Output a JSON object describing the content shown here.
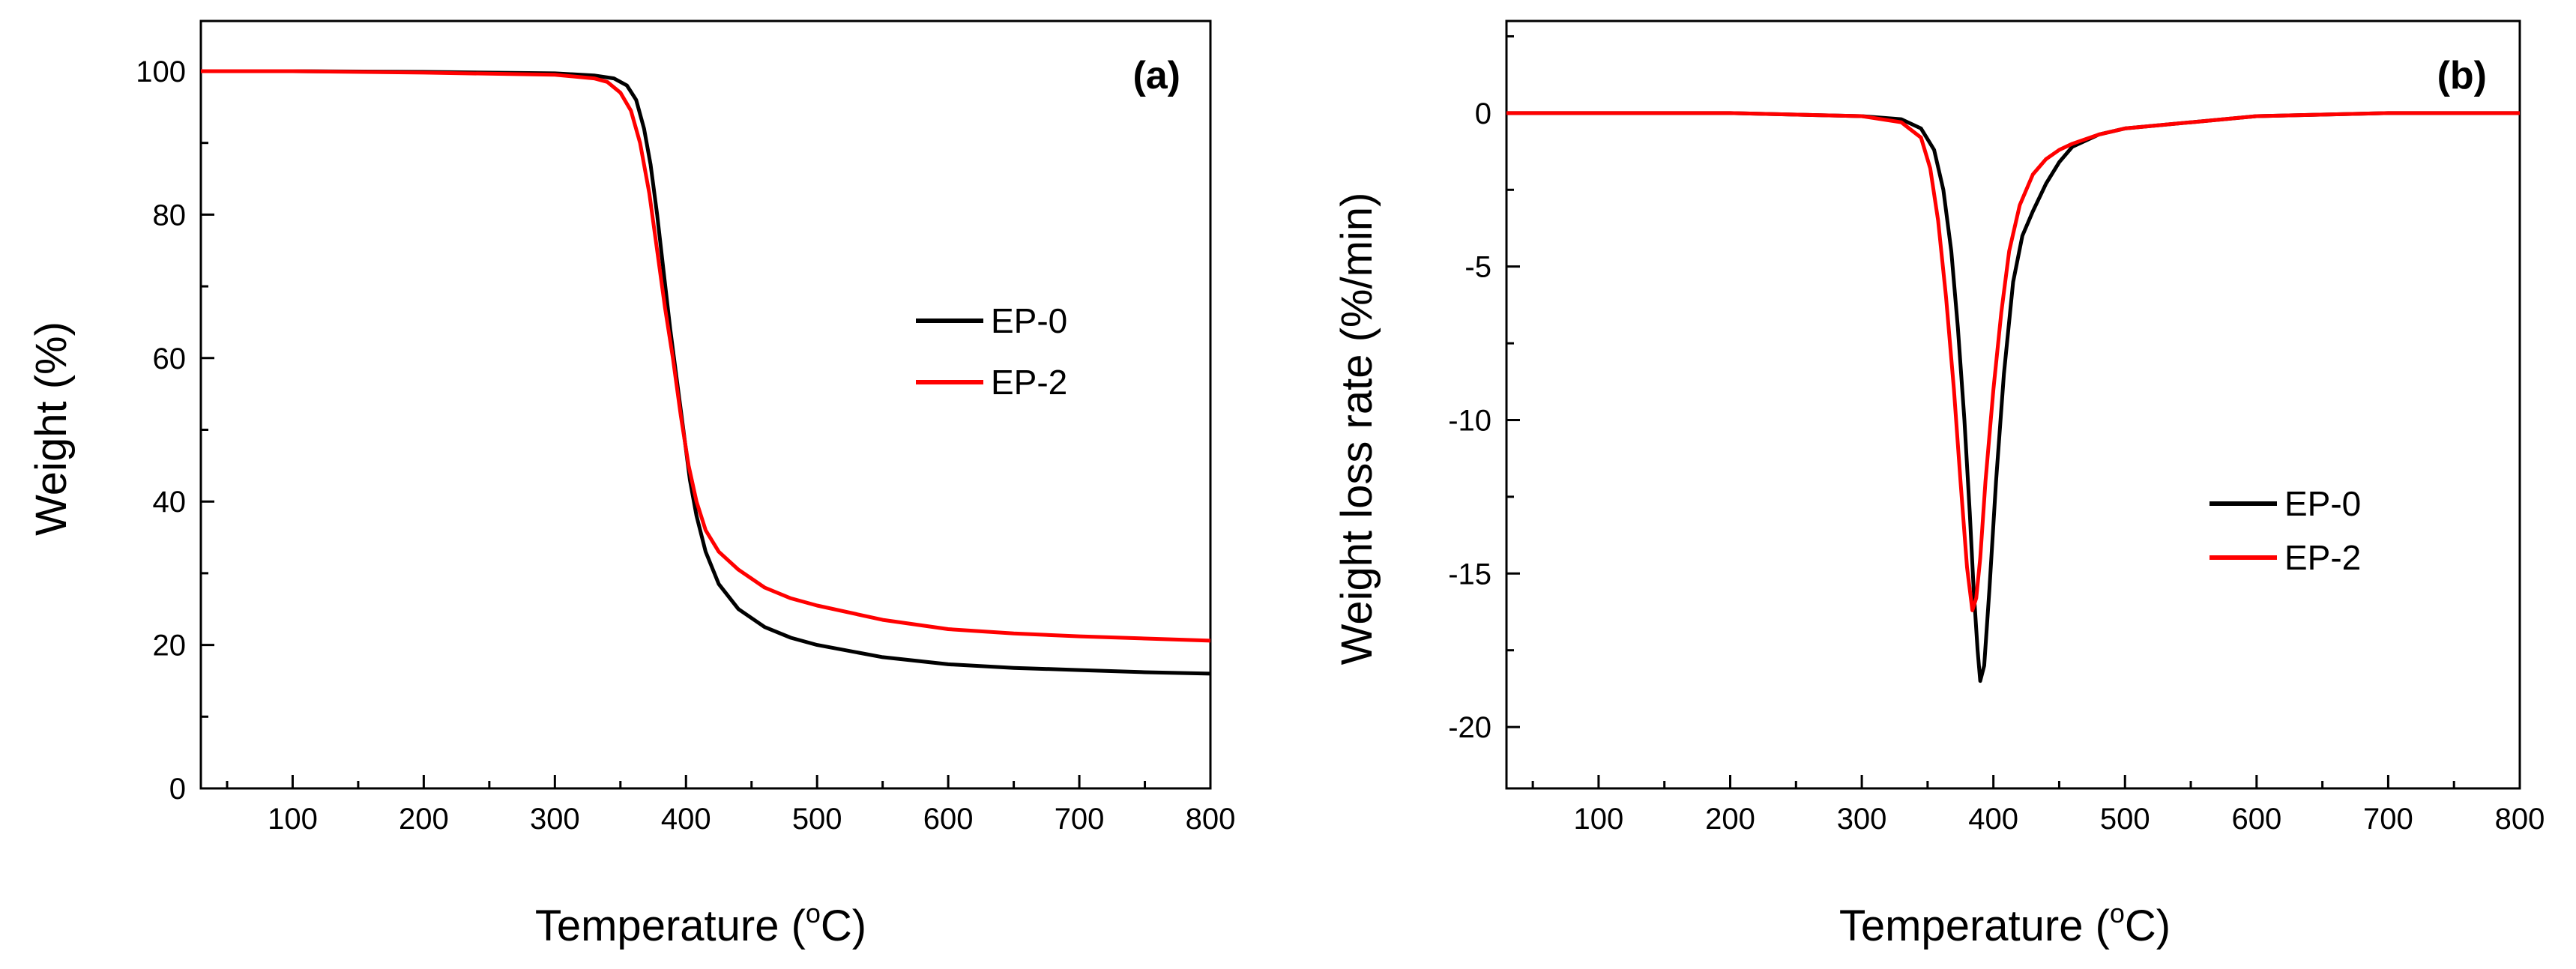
{
  "chart_data": [
    {
      "type": "line",
      "panel_label": "(a)",
      "xlabel": "Temperature (",
      "xlabel_sup": "o",
      "xlabel_unit": "C)",
      "ylabel": "Weight (%)",
      "xlim": [
        30,
        800
      ],
      "ylim": [
        0,
        107
      ],
      "x_ticks": [
        100,
        200,
        300,
        400,
        500,
        600,
        700,
        800
      ],
      "x_tick_labels": [
        "100",
        "200",
        "300",
        "400",
        "500",
        "600",
        "700",
        "800"
      ],
      "y_ticks": [
        0,
        20,
        40,
        60,
        80,
        100
      ],
      "y_tick_labels": [
        "0",
        "20",
        "40",
        "60",
        "80",
        "100"
      ],
      "legend_position": "middle-right",
      "series": [
        {
          "name": "EP-0",
          "color": "#000000",
          "x": [
            30,
            100,
            200,
            300,
            330,
            345,
            355,
            362,
            368,
            373,
            378,
            383,
            388,
            393,
            398,
            403,
            408,
            415,
            425,
            440,
            460,
            480,
            500,
            550,
            600,
            650,
            700,
            750,
            800
          ],
          "y": [
            100,
            100,
            99.9,
            99.7,
            99.4,
            99,
            98,
            96,
            92,
            87,
            80,
            72,
            64,
            57,
            50,
            43,
            38,
            33,
            28.5,
            25,
            22.5,
            21,
            20,
            18.3,
            17.3,
            16.8,
            16.5,
            16.2,
            16
          ]
        },
        {
          "name": "EP-2",
          "color": "#ff0000",
          "x": [
            30,
            100,
            200,
            300,
            330,
            340,
            350,
            358,
            365,
            372,
            378,
            384,
            390,
            396,
            402,
            408,
            415,
            425,
            440,
            460,
            480,
            500,
            550,
            600,
            650,
            700,
            750,
            800
          ],
          "y": [
            100,
            100,
            99.8,
            99.5,
            99,
            98.5,
            97,
            94.5,
            90,
            83,
            75,
            67,
            60,
            52,
            45,
            40,
            36,
            33,
            30.5,
            28,
            26.5,
            25.5,
            23.5,
            22.2,
            21.6,
            21.2,
            20.9,
            20.6
          ]
        }
      ]
    },
    {
      "type": "line",
      "panel_label": "(b)",
      "xlabel": "Temperature (",
      "xlabel_sup": "o",
      "xlabel_unit": "C)",
      "ylabel": "Weight loss rate (%/min)",
      "xlim": [
        30,
        800
      ],
      "ylim": [
        -22,
        3
      ],
      "x_ticks": [
        100,
        200,
        300,
        400,
        500,
        600,
        700,
        800
      ],
      "x_tick_labels": [
        "100",
        "200",
        "300",
        "400",
        "500",
        "600",
        "700",
        "800"
      ],
      "y_ticks": [
        0,
        -5,
        -10,
        -15,
        -20
      ],
      "y_tick_labels": [
        "0",
        "-5",
        "-10",
        "-15",
        "-20"
      ],
      "legend_position": "lower-right",
      "series": [
        {
          "name": "EP-0",
          "color": "#000000",
          "x": [
            30,
            100,
            200,
            300,
            330,
            345,
            355,
            362,
            368,
            373,
            378,
            382,
            385,
            388,
            390,
            393,
            397,
            402,
            408,
            415,
            422,
            430,
            440,
            450,
            460,
            480,
            500,
            550,
            600,
            700,
            800
          ],
          "y": [
            0,
            0,
            0,
            -0.1,
            -0.2,
            -0.5,
            -1.2,
            -2.5,
            -4.5,
            -7,
            -10,
            -13,
            -15.5,
            -17.5,
            -18.5,
            -18,
            -15.5,
            -12,
            -8.5,
            -5.5,
            -4,
            -3.2,
            -2.3,
            -1.6,
            -1.1,
            -0.7,
            -0.5,
            -0.3,
            -0.1,
            0,
            0
          ]
        },
        {
          "name": "EP-2",
          "color": "#ff0000",
          "x": [
            30,
            100,
            200,
            300,
            330,
            345,
            352,
            358,
            364,
            370,
            375,
            380,
            384,
            387,
            390,
            394,
            400,
            406,
            412,
            420,
            430,
            440,
            450,
            460,
            480,
            500,
            550,
            600,
            700,
            800
          ],
          "y": [
            0,
            0,
            0,
            -0.1,
            -0.3,
            -0.8,
            -1.8,
            -3.5,
            -6,
            -9,
            -12,
            -14.8,
            -16.2,
            -15.8,
            -14.5,
            -12,
            -9,
            -6.5,
            -4.5,
            -3,
            -2,
            -1.5,
            -1.2,
            -1,
            -0.7,
            -0.5,
            -0.3,
            -0.1,
            0,
            0
          ]
        }
      ]
    }
  ]
}
